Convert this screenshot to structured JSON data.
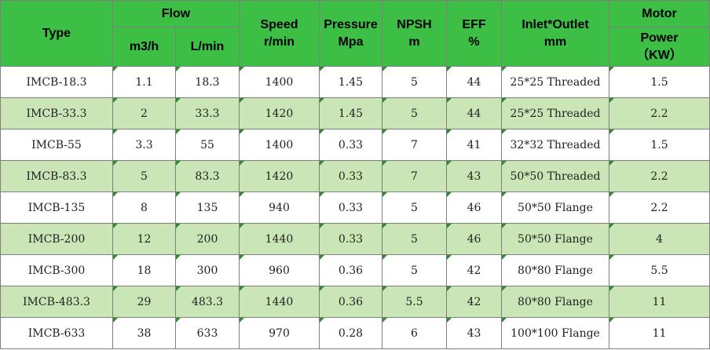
{
  "header": {
    "type": "Type",
    "flow": "Flow",
    "flow_m3h": "m3/h",
    "flow_lmin": "L/min",
    "speed": "Speed\nr/min",
    "pressure": "Pressure Mpa",
    "npsh": "NPSH\nm",
    "eff": "EFF\n%",
    "inlet_outlet": "Inlet*Outlet\nmm",
    "motor": "Motor",
    "power": "Power\n（KW）"
  },
  "rows": [
    {
      "type": "IMCB-18.3",
      "m3h": "1.1",
      "lmin": "18.3",
      "speed": "1400",
      "pressure": "1.45",
      "npsh": "5",
      "eff": "44",
      "inlet_outlet": "25*25 Threaded",
      "power": "1.5"
    },
    {
      "type": "IMCB-33.3",
      "m3h": "2",
      "lmin": "33.3",
      "speed": "1420",
      "pressure": "1.45",
      "npsh": "5",
      "eff": "44",
      "inlet_outlet": "25*25 Threaded",
      "power": "2.2"
    },
    {
      "type": "IMCB-55",
      "m3h": "3.3",
      "lmin": "55",
      "speed": "1400",
      "pressure": "0.33",
      "npsh": "7",
      "eff": "41",
      "inlet_outlet": "32*32 Threaded",
      "power": "1.5"
    },
    {
      "type": "IMCB-83.3",
      "m3h": "5",
      "lmin": "83.3",
      "speed": "1420",
      "pressure": "0.33",
      "npsh": "7",
      "eff": "43",
      "inlet_outlet": "50*50 Threaded",
      "power": "2.2"
    },
    {
      "type": "IMCB-135",
      "m3h": "8",
      "lmin": "135",
      "speed": "940",
      "pressure": "0.33",
      "npsh": "5",
      "eff": "46",
      "inlet_outlet": "50*50 Flange",
      "power": "2.2"
    },
    {
      "type": "IMCB-200",
      "m3h": "12",
      "lmin": "200",
      "speed": "1440",
      "pressure": "0.33",
      "npsh": "5",
      "eff": "46",
      "inlet_outlet": "50*50 Flange",
      "power": "4"
    },
    {
      "type": "IMCB-300",
      "m3h": "18",
      "lmin": "300",
      "speed": "960",
      "pressure": "0.36",
      "npsh": "5",
      "eff": "42",
      "inlet_outlet": "80*80 Flange",
      "power": "5.5"
    },
    {
      "type": "IMCB-483.3",
      "m3h": "29",
      "lmin": "483.3",
      "speed": "1440",
      "pressure": "0.36",
      "npsh": "5.5",
      "eff": "42",
      "inlet_outlet": "80*80 Flange",
      "power": "11"
    },
    {
      "type": "IMCB-633",
      "m3h": "38",
      "lmin": "633",
      "speed": "970",
      "pressure": "0.28",
      "npsh": "6",
      "eff": "43",
      "inlet_outlet": "100*100 Flange",
      "power": "11"
    }
  ],
  "colors": {
    "header_bg": "#3dbe45",
    "row_alt_bg": "#cbe6b6",
    "row_bg": "#ffffff",
    "border": "#7f7f7f"
  }
}
